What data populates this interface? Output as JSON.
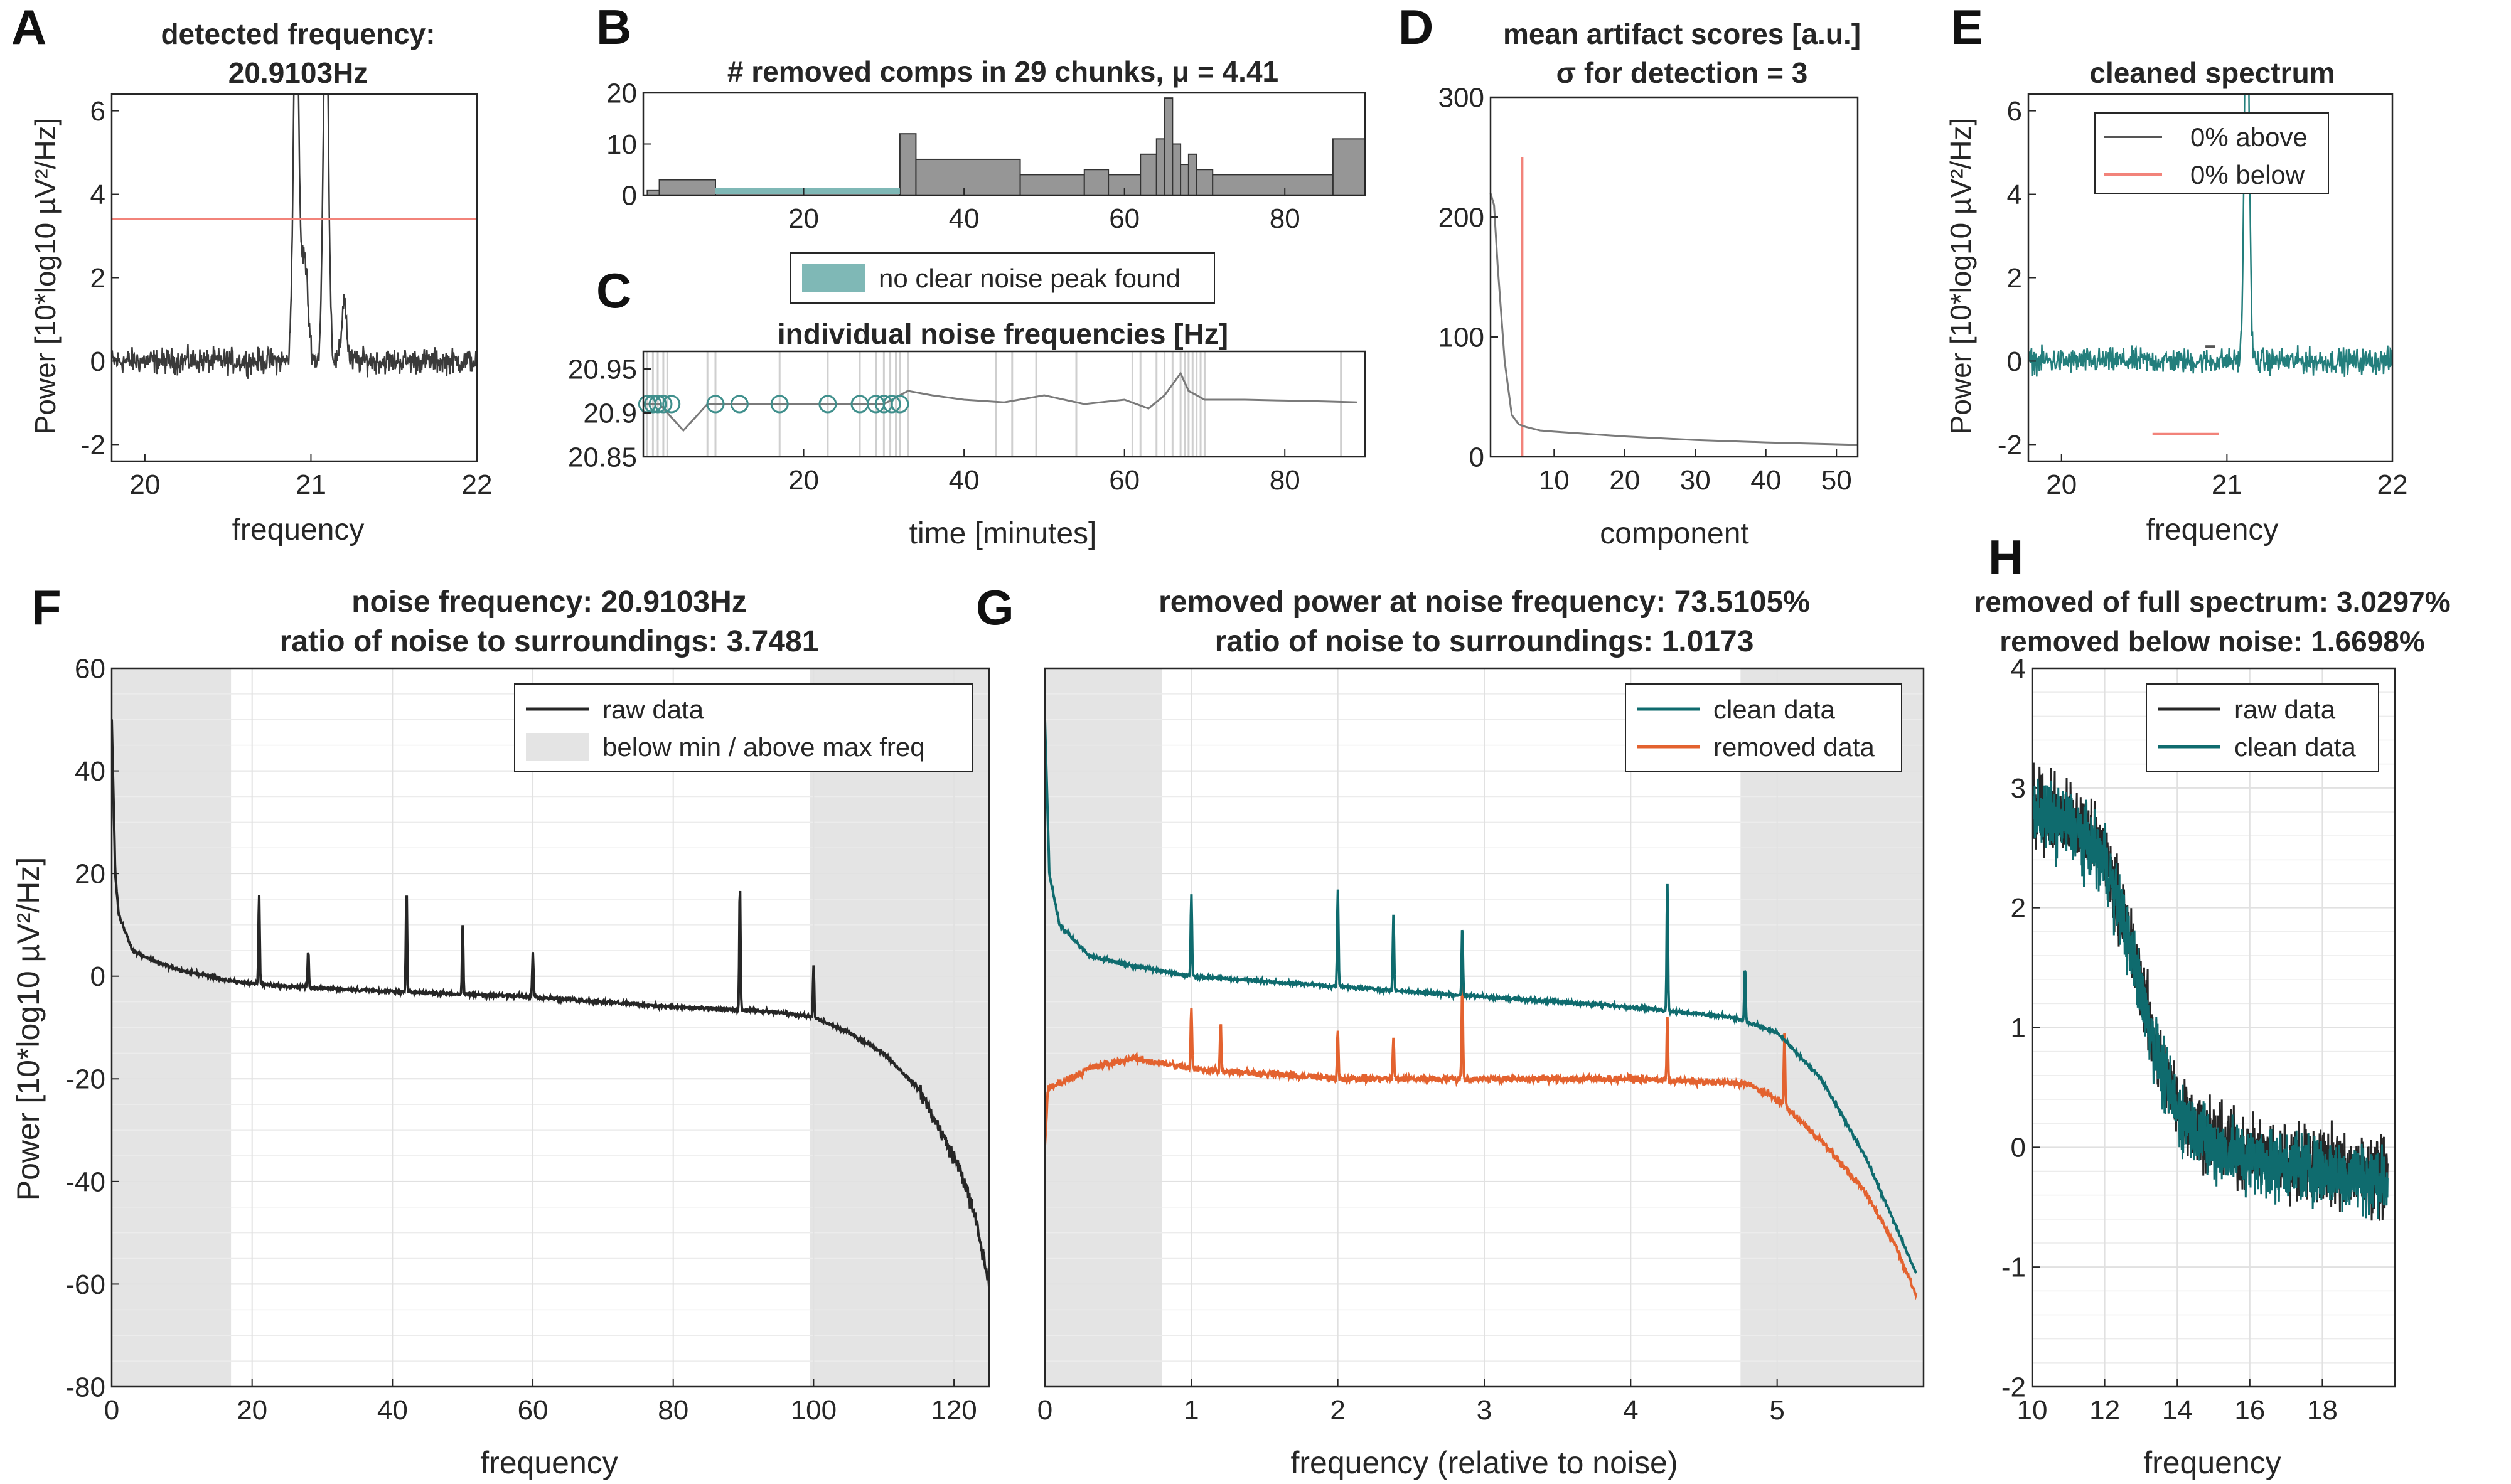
{
  "colors": {
    "raw": "#262626",
    "clean": "#0f6b6e",
    "removed": "#e3622f",
    "red": "#f2837a",
    "teal_fill": "#7fb8b6",
    "gray_bar": "#969696",
    "shade": "#e4e4e4",
    "grid": "#e1e1e1",
    "axis": "#262626"
  },
  "chart_data": [
    {
      "panel": "A",
      "type": "line",
      "title": "detected frequency:",
      "subtitle": "20.9103Hz",
      "xlabel": "frequency",
      "ylabel": "Power [10*log10 µV²/Hz]",
      "xlim": [
        19.8,
        22
      ],
      "ylim": [
        -2.4,
        6.4
      ],
      "xticks": [
        "20",
        "21",
        "22"
      ],
      "yticks": [
        "-2",
        "0",
        "2",
        "4",
        "6"
      ],
      "threshold": 3.4,
      "peaks": [
        {
          "x": 20.91,
          "y": 6.4
        },
        {
          "x": 21.09,
          "y": 6.4
        }
      ],
      "noise_level": 0
    },
    {
      "panel": "B",
      "type": "bar",
      "title": "# removed comps in 29 chunks, μ = 4.41",
      "xlim": [
        0,
        90
      ],
      "ylim": [
        0,
        20
      ],
      "xticks": [
        "20",
        "40",
        "60",
        "80"
      ],
      "yticks": [
        "0",
        "10",
        "20"
      ],
      "legend": [
        "no clear noise peak found"
      ],
      "bars": [
        [
          0.5,
          2,
          1
        ],
        [
          2,
          9,
          3
        ],
        [
          9,
          32,
          1
        ],
        [
          32,
          34,
          12
        ],
        [
          34,
          47,
          7
        ],
        [
          47,
          55,
          4
        ],
        [
          55,
          58,
          5
        ],
        [
          58,
          62,
          4
        ],
        [
          62,
          64,
          8
        ],
        [
          64,
          65,
          11
        ],
        [
          65,
          66,
          19
        ],
        [
          66,
          67,
          10
        ],
        [
          67,
          68,
          6
        ],
        [
          68,
          69,
          8
        ],
        [
          69,
          71,
          5
        ],
        [
          71,
          86,
          4
        ],
        [
          86,
          90,
          11
        ]
      ],
      "teal_spans": [
        [
          9,
          32
        ]
      ]
    },
    {
      "panel": "C",
      "type": "line",
      "title": "individual noise frequencies [Hz]",
      "xlabel": "time [minutes]",
      "xlim": [
        0,
        90
      ],
      "ylim": [
        20.85,
        20.97
      ],
      "xticks": [
        "20",
        "40",
        "60",
        "80"
      ],
      "yticks": [
        "20.85",
        "20.9",
        "20.95"
      ],
      "series": [
        {
          "x": [
            0,
            2,
            5,
            8,
            10,
            12,
            15,
            18,
            22,
            26,
            30,
            33,
            36,
            40,
            45,
            50,
            55,
            60,
            63,
            65,
            67,
            68,
            70,
            75,
            80,
            85,
            89
          ],
          "y": [
            20.91,
            20.91,
            20.88,
            20.91,
            20.91,
            20.91,
            20.91,
            20.91,
            20.91,
            20.91,
            20.91,
            20.925,
            20.92,
            20.915,
            20.912,
            20.92,
            20.91,
            20.915,
            20.905,
            20.92,
            20.945,
            20.925,
            20.915,
            20.915,
            20.914,
            20.913,
            20.912
          ]
        }
      ],
      "circles_x": [
        0.5,
        1.2,
        1.8,
        2.5,
        3.5,
        9,
        12,
        17,
        23,
        27,
        29,
        30,
        31,
        32
      ],
      "vlines_x": [
        0.5,
        1.2,
        1.8,
        2.5,
        3,
        8,
        9,
        17,
        23,
        27,
        29,
        30,
        30.8,
        31.5,
        32,
        33,
        44,
        46,
        49,
        54,
        61,
        62,
        64,
        65,
        66,
        67,
        67.5,
        68,
        68.5,
        69,
        69.5,
        70,
        87
      ]
    },
    {
      "panel": "D",
      "type": "line",
      "title": "mean artifact scores [a.u.]",
      "subtitle": "σ for detection = 3",
      "xlabel": "component",
      "xlim": [
        1,
        53
      ],
      "ylim": [
        0,
        300
      ],
      "xticks": [
        "10",
        "20",
        "30",
        "40",
        "50"
      ],
      "yticks": [
        "0",
        "100",
        "200",
        "300"
      ],
      "threshold_x": 5.5,
      "series": [
        {
          "x": [
            1,
            1.5,
            2,
            3,
            4,
            5,
            6,
            8,
            10,
            15,
            20,
            30,
            40,
            53
          ],
          "y": [
            220,
            210,
            160,
            80,
            35,
            27,
            25,
            22,
            21,
            19,
            17,
            14,
            12,
            10
          ]
        }
      ]
    },
    {
      "panel": "E",
      "type": "line",
      "title": "cleaned spectrum",
      "xlabel": "frequency",
      "ylabel": "Power [10*log10 µV²/Hz]",
      "xlim": [
        19.8,
        22
      ],
      "ylim": [
        -2.4,
        6.4
      ],
      "xticks": [
        "20",
        "21",
        "22"
      ],
      "yticks": [
        "-2",
        "0",
        "2",
        "4",
        "6"
      ],
      "legend": [
        "0% above",
        "0% below"
      ],
      "peak_x": 21.12
    },
    {
      "panel": "F",
      "type": "line",
      "title": "noise frequency: 20.9103Hz",
      "subtitle": "ratio of noise to surroundings: 3.7481",
      "xlabel": "frequency",
      "ylabel": "Power [10*log10 µV²/Hz]",
      "xlim": [
        0,
        125
      ],
      "ylim": [
        -80,
        60
      ],
      "xticks": [
        "0",
        "20",
        "40",
        "60",
        "80",
        "100",
        "120"
      ],
      "yticks": [
        "-80",
        "-60",
        "-40",
        "-20",
        "0",
        "20",
        "40",
        "60"
      ],
      "legend": [
        "raw data",
        "below min / above max freq"
      ],
      "shade_spans": [
        [
          0,
          17
        ],
        [
          99.5,
          125
        ]
      ],
      "series": [
        {
          "name": "raw data",
          "x": [
            0,
            0.5,
            1,
            3,
            6,
            10,
            14,
            17,
            25,
            40,
            60,
            80,
            95,
            100,
            105,
            110,
            115,
            118,
            121,
            123,
            125
          ],
          "y": [
            50,
            20,
            12,
            5,
            3,
            1,
            0,
            -1,
            -2,
            -3,
            -4,
            -6,
            -7,
            -8,
            -11,
            -15,
            -22,
            -30,
            -38,
            -47,
            -60
          ]
        }
      ],
      "spikes": [
        [
          21,
          16
        ],
        [
          28,
          5
        ],
        [
          42,
          17
        ],
        [
          50,
          10
        ],
        [
          60,
          5
        ],
        [
          89.5,
          18
        ],
        [
          100,
          2
        ]
      ]
    },
    {
      "panel": "G",
      "type": "line",
      "title": "removed power at noise frequency: 73.5105%",
      "subtitle": "ratio of noise to surroundings: 1.0173",
      "xlabel": "frequency (relative to noise)",
      "xlim": [
        0,
        6
      ],
      "ylim": [
        -80,
        60
      ],
      "xticks": [
        "0",
        "1",
        "2",
        "3",
        "4",
        "5"
      ],
      "yticks": [],
      "legend": [
        "clean data",
        "removed data"
      ],
      "shade_spans": [
        [
          0,
          0.8
        ],
        [
          4.75,
          6
        ]
      ],
      "series": [
        {
          "name": "clean data",
          "x": [
            0,
            0.03,
            0.1,
            0.3,
            0.6,
            0.8,
            1,
            2,
            3,
            4,
            4.7,
            5,
            5.3,
            5.6,
            5.8,
            5.95
          ],
          "y": [
            50,
            20,
            10,
            4,
            2,
            1,
            0,
            -2,
            -4,
            -6,
            -8,
            -11,
            -20,
            -35,
            -48,
            -58
          ]
        },
        {
          "name": "removed data",
          "x": [
            0,
            0.02,
            0.3,
            0.6,
            0.8,
            1,
            2,
            3,
            4,
            4.8,
            5,
            5.3,
            5.6,
            5.8,
            5.95
          ],
          "y": [
            -33,
            -22,
            -18,
            -16,
            -17,
            -18,
            -20,
            -20,
            -20,
            -21,
            -24,
            -32,
            -42,
            -52,
            -62
          ]
        }
      ],
      "spikes_clean": [
        [
          1,
          16
        ],
        [
          2,
          17
        ],
        [
          2.38,
          12
        ],
        [
          2.85,
          10
        ],
        [
          4.25,
          18
        ],
        [
          4.78,
          2
        ]
      ],
      "spikes_removed": [
        [
          1,
          -6
        ],
        [
          1.2,
          -9
        ],
        [
          2,
          -10
        ],
        [
          2.38,
          -12
        ],
        [
          2.85,
          0
        ],
        [
          4.25,
          -8
        ],
        [
          5.05,
          -11
        ]
      ]
    },
    {
      "panel": "H",
      "type": "line",
      "title": "removed of full spectrum: 3.0297%",
      "subtitle": "removed below noise: 1.6698%",
      "xlabel": "frequency",
      "xlim": [
        10,
        20
      ],
      "ylim": [
        -2,
        4
      ],
      "xticks": [
        "10",
        "12",
        "14",
        "16",
        "18"
      ],
      "yticks": [
        "-2",
        "-1",
        "0",
        "1",
        "2",
        "3",
        "4"
      ],
      "legend": [
        "raw data",
        "clean data"
      ],
      "series": [
        {
          "name": "clean data",
          "x": [
            10,
            11,
            12,
            12.5,
            13,
            13.5,
            14,
            15,
            16,
            17,
            18,
            19,
            19.8
          ],
          "y": [
            2.8,
            2.7,
            2.4,
            1.9,
            1.3,
            0.7,
            0.3,
            0,
            -0.1,
            -0.15,
            -0.2,
            -0.25,
            -0.3
          ]
        }
      ]
    }
  ]
}
